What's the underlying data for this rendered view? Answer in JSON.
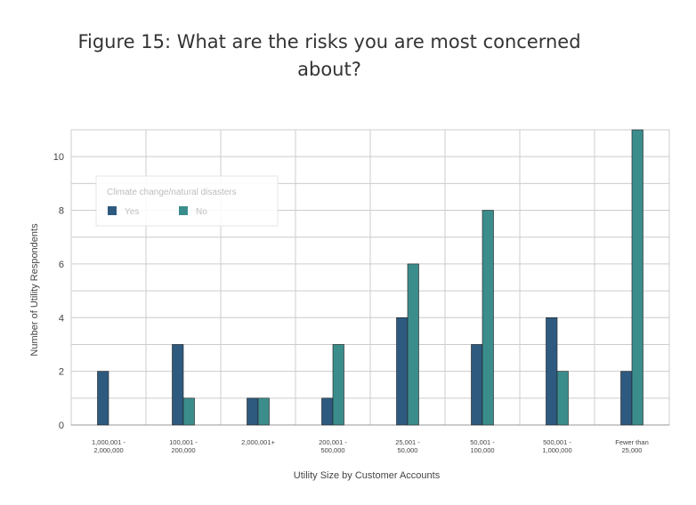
{
  "chart_data": {
    "type": "bar",
    "title": "Figure 15: What are the risks you are most concerned about?",
    "xlabel": "Utility Size by Customer Accounts",
    "ylabel": "Number of Utility Respondents",
    "ylim": [
      0,
      11
    ],
    "yticks": [
      0,
      2,
      4,
      6,
      8,
      10
    ],
    "grid": true,
    "categories": [
      "1,000,001 -\n2,000,000",
      "100,001 -\n200,000",
      "2,000,001+",
      "200,001 -\n500,000",
      "25,001 -\n50,000",
      "50,001 -\n100,000",
      "500,001 -\n1,000,000",
      "Fewer than\n25,000"
    ],
    "legend": {
      "title": "Climate change/natural disasters",
      "placement": "top-left"
    },
    "series": [
      {
        "name": "Yes",
        "color": "#2e5a7f",
        "values": [
          2,
          3,
          1,
          1,
          4,
          3,
          4,
          2
        ]
      },
      {
        "name": "No",
        "color": "#3b8d8c",
        "values": [
          0,
          1,
          1,
          3,
          6,
          8,
          2,
          11
        ]
      }
    ]
  }
}
